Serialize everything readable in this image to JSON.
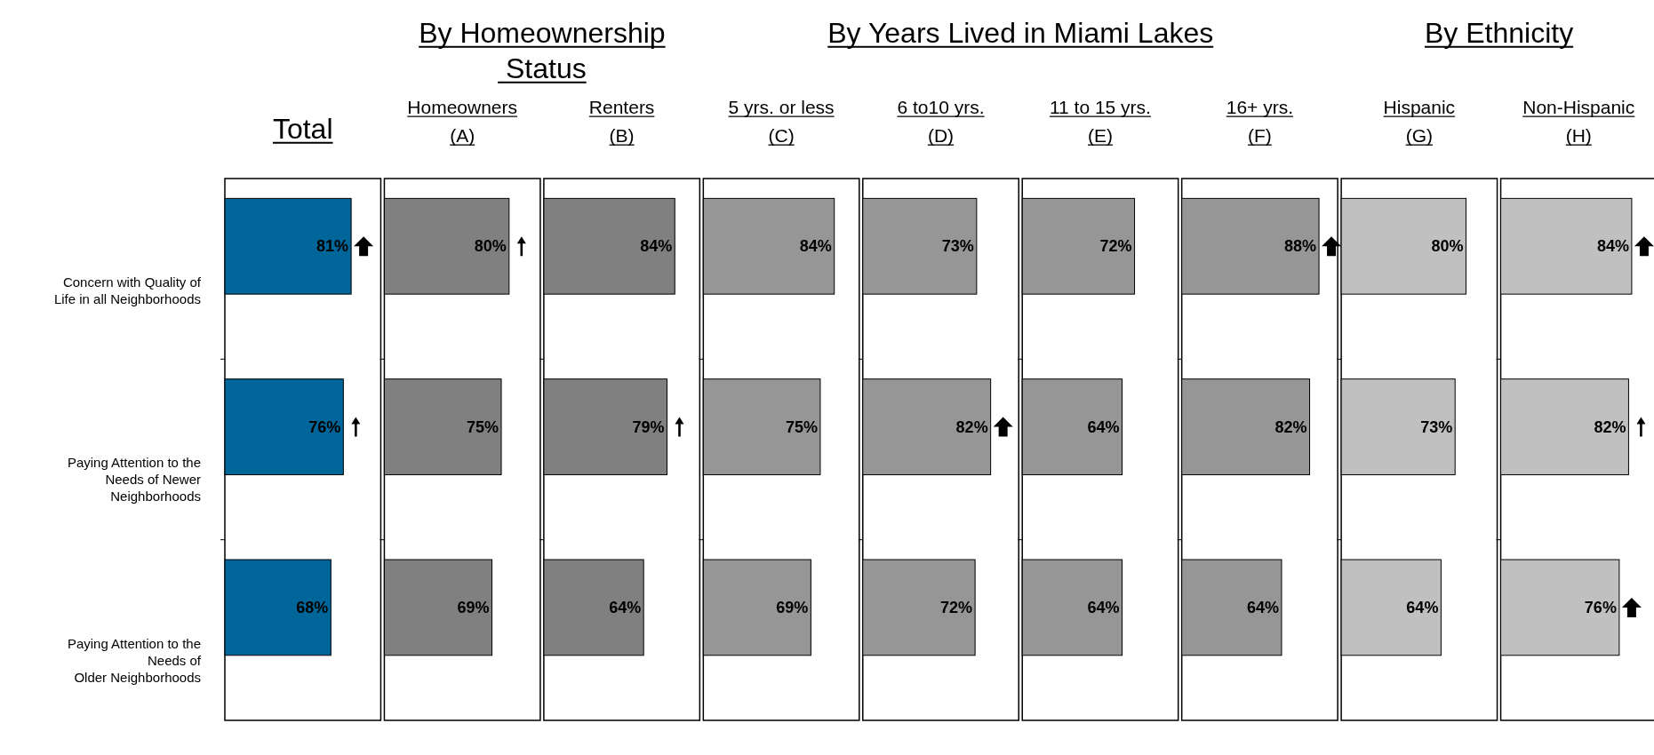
{
  "chart_data": [
    {
      "type": "bar",
      "orientation": "horizontal",
      "title": "Total",
      "categories": [
        "Concern with Quality of\nLife in all Neighborhoods",
        "Paying Attention to the\nNeeds of Newer\nNeighborhoods",
        "Paying Attention to the\nNeeds of\nOlder Neighborhoods"
      ],
      "values": [
        81,
        76,
        68
      ],
      "value_labels": [
        "81%",
        "76%",
        "68%"
      ],
      "color": "#006699",
      "xlim": [
        0,
        100
      ],
      "tick_labels": "y"
    },
    {
      "type": "bar",
      "orientation": "horizontal",
      "title": "Homeowners\n(A)",
      "annotations": [
        "By Homeownership\n Status"
      ],
      "categories": [
        null,
        null,
        null
      ],
      "values": [
        80,
        75,
        69
      ],
      "value_labels": [
        "80%",
        "75%",
        "69%"
      ],
      "color": "#808080",
      "xlim": [
        0,
        100
      ],
      "tick_labels": false
    },
    {
      "type": "bar",
      "orientation": "horizontal",
      "title": "Renters\n(B)",
      "categories": [
        null,
        null,
        null
      ],
      "values": [
        84,
        79,
        64
      ],
      "value_labels": [
        "84%",
        "79%",
        "64%"
      ],
      "color": "#808080",
      "xlim": [
        0,
        100
      ],
      "tick_labels": false
    },
    {
      "type": "bar",
      "orientation": "horizontal",
      "title": "5 yrs. or less\n(C)",
      "annotations": [
        "By Years Lived in Miami Lakes"
      ],
      "categories": [
        null,
        null,
        null
      ],
      "values": [
        84,
        75,
        69
      ],
      "value_labels": [
        "84%",
        "75%",
        "69%"
      ],
      "color": "#969696",
      "xlim": [
        0,
        100
      ],
      "tick_labels": false
    },
    {
      "type": "bar",
      "orientation": "horizontal",
      "title": "6 to10 yrs.\n(D)",
      "categories": [
        null,
        null,
        null
      ],
      "values": [
        73,
        82,
        72
      ],
      "value_labels": [
        "73%",
        "82%",
        "72%"
      ],
      "color": "#969696",
      "xlim": [
        0,
        100
      ],
      "tick_labels": false
    },
    {
      "type": "bar",
      "orientation": "horizontal",
      "title": "11 to 15 yrs.\n(E)",
      "categories": [
        null,
        null,
        null
      ],
      "values": [
        72,
        64,
        64
      ],
      "value_labels": [
        "72%",
        "64%",
        "64%"
      ],
      "color": "#969696",
      "xlim": [
        0,
        100
      ],
      "tick_labels": false
    },
    {
      "type": "bar",
      "orientation": "horizontal",
      "title": "16+ yrs.\n(F)",
      "categories": [
        null,
        null,
        null
      ],
      "values": [
        88,
        82,
        64
      ],
      "value_labels": [
        "88%",
        "82%",
        "64%"
      ],
      "color": "#969696",
      "xlim": [
        0,
        100
      ],
      "tick_labels": false
    },
    {
      "type": "bar",
      "orientation": "horizontal",
      "title": "Hispanic\n(G)",
      "annotations": [
        "By Ethnicity"
      ],
      "categories": [
        null,
        null,
        null
      ],
      "values": [
        80,
        73,
        64
      ],
      "value_labels": [
        "80%",
        "73%",
        "64%"
      ],
      "color": "#c0c0c0",
      "xlim": [
        0,
        100
      ],
      "tick_labels": false
    },
    {
      "type": "bar",
      "orientation": "horizontal",
      "title": "Non-Hispanic\n(H)",
      "categories": [
        null,
        null,
        null
      ],
      "values": [
        84,
        82,
        76
      ],
      "value_labels": [
        "84%",
        "82%",
        "76%"
      ],
      "color": "#c0c0c0",
      "xlim": [
        0,
        100
      ],
      "tick_labels": false
    }
  ]
}
